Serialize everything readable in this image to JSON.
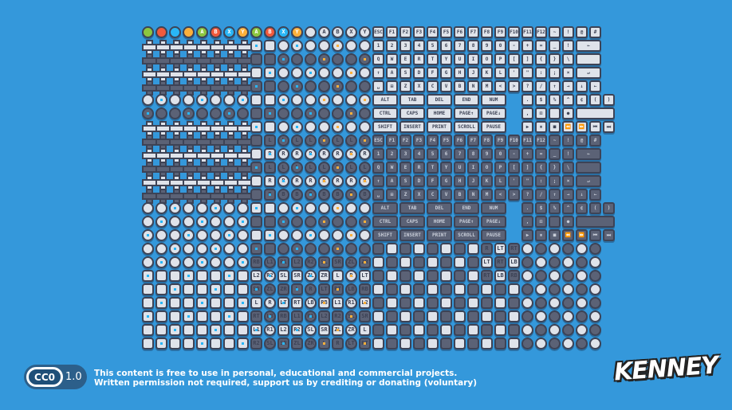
{
  "colors": {
    "background": "#3498db",
    "tile_border": "#3d4356",
    "tile_light": "#dfe3ea",
    "tile_dark": "#5b6276",
    "accent_blue": "#29b6f6",
    "accent_orange": "#fbb03b",
    "green": "#8cc63f",
    "red": "#f05a3c"
  },
  "top_row": [
    {
      "color": "#8cc63f",
      "label": ""
    },
    {
      "color": "#f05a3c",
      "label": ""
    },
    {
      "color": "#29b6f6",
      "label": ""
    },
    {
      "color": "#fbb03b",
      "label": ""
    },
    {
      "color": "#8cc63f",
      "label": "A"
    },
    {
      "color": "#f05a3c",
      "label": "B"
    },
    {
      "color": "#29b6f6",
      "label": "X"
    },
    {
      "color": "#fbb03b",
      "label": "Y"
    },
    {
      "color": "#8cc63f",
      "label": "A"
    },
    {
      "color": "#f05a3c",
      "label": "B"
    },
    {
      "color": "#29b6f6",
      "label": "X"
    },
    {
      "color": "#fbb03b",
      "label": "Y"
    },
    {
      "color": "#dfe3ea",
      "label": ""
    },
    {
      "color": "#dfe3ea",
      "label": "A"
    },
    {
      "color": "#dfe3ea",
      "label": "B"
    },
    {
      "color": "#dfe3ea",
      "label": "X"
    },
    {
      "color": "#dfe3ea",
      "label": "Y"
    }
  ],
  "keyboard_rows": [
    [
      [
        "ESC",
        1
      ],
      [
        "F1",
        1
      ],
      [
        "F2",
        1
      ],
      [
        "F3",
        1
      ],
      [
        "F4",
        1
      ],
      [
        "F5",
        1
      ],
      [
        "F6",
        1
      ],
      [
        "F7",
        1
      ],
      [
        "F8",
        1
      ],
      [
        "F9",
        1
      ],
      [
        "F10",
        1
      ],
      [
        "F11",
        1
      ],
      [
        "F12",
        1
      ],
      [
        "~",
        1
      ],
      [
        "!",
        1
      ],
      [
        "@",
        1
      ],
      [
        "#",
        1
      ]
    ],
    [
      [
        "1",
        1
      ],
      [
        "2",
        1
      ],
      [
        "3",
        1
      ],
      [
        "4",
        1
      ],
      [
        "5",
        1
      ],
      [
        "6",
        1
      ],
      [
        "7",
        1
      ],
      [
        "8",
        1
      ],
      [
        "9",
        1
      ],
      [
        "0",
        1
      ],
      [
        "-",
        1
      ],
      [
        "+",
        1
      ],
      [
        "=",
        1
      ],
      [
        "_",
        1
      ],
      [
        "!",
        1
      ],
      [
        "←",
        2
      ]
    ],
    [
      [
        "Q",
        1
      ],
      [
        "W",
        1
      ],
      [
        "E",
        1
      ],
      [
        "R",
        1
      ],
      [
        "T",
        1
      ],
      [
        "Y",
        1
      ],
      [
        "U",
        1
      ],
      [
        "I",
        1
      ],
      [
        "O",
        1
      ],
      [
        "P",
        1
      ],
      [
        "[",
        1
      ],
      [
        "]",
        1
      ],
      [
        "{",
        1
      ],
      [
        "}",
        1
      ],
      [
        "\\",
        1
      ],
      [
        "",
        2
      ]
    ],
    [
      [
        "↑",
        1
      ],
      [
        "A",
        1
      ],
      [
        "S",
        1
      ],
      [
        "D",
        1
      ],
      [
        "F",
        1
      ],
      [
        "G",
        1
      ],
      [
        "H",
        1
      ],
      [
        "J",
        1
      ],
      [
        "K",
        1
      ],
      [
        "L",
        1
      ],
      [
        "'",
        1
      ],
      [
        "\"",
        1
      ],
      [
        ":",
        1
      ],
      [
        ";",
        1
      ],
      [
        "×",
        1
      ],
      [
        "↵",
        2
      ]
    ],
    [
      [
        "␣",
        1
      ],
      [
        "⊞",
        1
      ],
      [
        "Z",
        1
      ],
      [
        "X",
        1
      ],
      [
        "C",
        1
      ],
      [
        "V",
        1
      ],
      [
        "B",
        1
      ],
      [
        "N",
        1
      ],
      [
        "M",
        1
      ],
      [
        "<",
        1
      ],
      [
        ">",
        1
      ],
      [
        "?",
        1
      ],
      [
        "/",
        1
      ],
      [
        "↑",
        1
      ],
      [
        "→",
        1
      ],
      [
        "↓",
        1
      ],
      [
        "←",
        1
      ]
    ],
    [
      [
        "ALT",
        2
      ],
      [
        "TAB",
        2
      ],
      [
        "DEL",
        2
      ],
      [
        "END",
        2
      ],
      [
        "NUM",
        2
      ],
      [
        ".",
        1
      ],
      [
        "$",
        1
      ],
      [
        "%",
        1
      ],
      [
        "^",
        1
      ],
      [
        "¢",
        1
      ],
      [
        "(",
        1
      ],
      [
        ")",
        1
      ]
    ],
    [
      [
        "CTRL",
        2
      ],
      [
        "CAPS",
        2
      ],
      [
        "HOME",
        2
      ],
      [
        "PAGE↑",
        2
      ],
      [
        "PAGE↓",
        2
      ],
      [
        ",",
        1
      ],
      [
        "⊡",
        1
      ],
      [
        "",
        1
      ],
      [
        "●",
        1
      ],
      [
        "",
        3
      ]
    ],
    [
      [
        "SHIFT",
        2
      ],
      [
        "INSERT",
        2
      ],
      [
        "PRINT",
        2
      ],
      [
        "SCROLL",
        2
      ],
      [
        "PAUSE",
        2
      ],
      [
        "▶",
        1
      ],
      [
        "⏸",
        1
      ],
      [
        "■",
        1
      ],
      [
        "⏪",
        1
      ],
      [
        "⏩",
        1
      ],
      [
        "⏮",
        1
      ],
      [
        "⏭",
        1
      ]
    ]
  ],
  "trigger_labels": [
    "LT",
    "RT",
    "LB",
    "RB",
    "L1",
    "R1",
    "L2",
    "R2",
    "SL",
    "SR",
    "ZL",
    "ZR",
    "L",
    "R"
  ],
  "license": {
    "badge": "CC0",
    "version": "1.0",
    "line1": "This content is free to use in personal, educational and commercial projects.",
    "line2": "Written permission not required, support us by crediting or donating (voluntary)"
  },
  "logo": "KENNEY"
}
